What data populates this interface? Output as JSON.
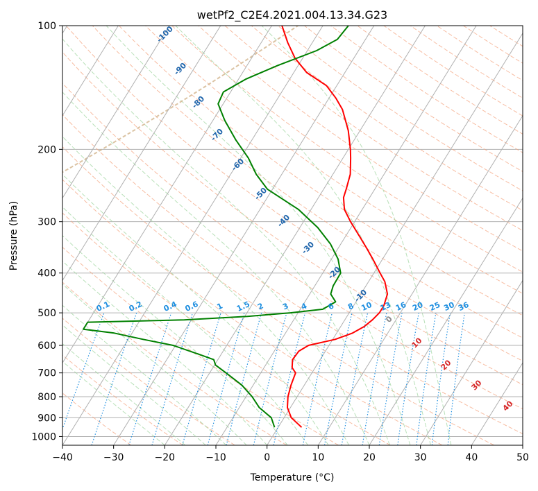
{
  "chart_data": {
    "type": "line",
    "title": "wetPf2_C2E4.2021.004.13.34.G23",
    "xlabel": "Temperature (°C)",
    "ylabel": "Pressure (hPa)",
    "xlim": [
      -40,
      50
    ],
    "ylim": [
      1050,
      100
    ],
    "x_ticks": [
      "−40",
      "−30",
      "−20",
      "−10",
      "0",
      "10",
      "20",
      "30",
      "40",
      "50"
    ],
    "y_ticks": [
      "100",
      "200",
      "300",
      "400",
      "500",
      "600",
      "700",
      "800",
      "900",
      "1000"
    ],
    "y_scale": "log",
    "grid": true,
    "colors": {
      "temperature": "#ff0000",
      "dewpoint": "#008000",
      "isotherm": "#b0b0b0",
      "dry_adiabat": "#f4a582",
      "moist_adiabat": "#a6d8a6",
      "mixing_ratio": "#1f8fe0",
      "mixing_ratio_label": "#1f8fe0",
      "isotherm_label": "#2166ac",
      "warm_label": "#d62728",
      "outer_curve": "#d2b48c"
    },
    "isotherm_labels": [
      "-100",
      "-90",
      "-80",
      "-70",
      "-60",
      "-50",
      "-40",
      "-30",
      "-20",
      "-10",
      "0",
      "10",
      "20",
      "30",
      "40"
    ],
    "mixing_ratio_labels": [
      "0.1",
      "0.2",
      "0.4",
      "0.6",
      "1",
      "1.5",
      "2",
      "3",
      "4",
      "6",
      "8",
      "10",
      "13",
      "16",
      "20",
      "25",
      "30",
      "36"
    ],
    "series": [
      {
        "role": "temperature",
        "points": [
          {
            "p": 950,
            "t": 4.6
          },
          {
            "p": 900,
            "t": 1.4
          },
          {
            "p": 850,
            "t": -0.6
          },
          {
            "p": 800,
            "t": -1.8
          },
          {
            "p": 750,
            "t": -2.6
          },
          {
            "p": 700,
            "t": -3.2
          },
          {
            "p": 680,
            "t": -4.5
          },
          {
            "p": 650,
            "t": -5.4
          },
          {
            "p": 620,
            "t": -5.2
          },
          {
            "p": 600,
            "t": -4.0
          },
          {
            "p": 580,
            "t": 0.5
          },
          {
            "p": 560,
            "t": 3.1
          },
          {
            "p": 540,
            "t": 4.6
          },
          {
            "p": 520,
            "t": 5.4
          },
          {
            "p": 500,
            "t": 5.9
          },
          {
            "p": 480,
            "t": 5.9
          },
          {
            "p": 450,
            "t": 5.2
          },
          {
            "p": 420,
            "t": 3.2
          },
          {
            "p": 400,
            "t": 1.2
          },
          {
            "p": 370,
            "t": -1.9
          },
          {
            "p": 350,
            "t": -4.2
          },
          {
            "p": 330,
            "t": -6.7
          },
          {
            "p": 300,
            "t": -10.8
          },
          {
            "p": 280,
            "t": -13.5
          },
          {
            "p": 262,
            "t": -15.1
          },
          {
            "p": 250,
            "t": -15.6
          },
          {
            "p": 230,
            "t": -16.6
          },
          {
            "p": 210,
            "t": -18.5
          },
          {
            "p": 200,
            "t": -19.6
          },
          {
            "p": 180,
            "t": -22.3
          },
          {
            "p": 160,
            "t": -26.0
          },
          {
            "p": 150,
            "t": -28.7
          },
          {
            "p": 140,
            "t": -32.0
          },
          {
            "p": 130,
            "t": -37.5
          },
          {
            "p": 120,
            "t": -41.5
          },
          {
            "p": 110,
            "t": -44.8
          },
          {
            "p": 100,
            "t": -48.0
          }
        ]
      },
      {
        "role": "dewpoint",
        "points": [
          {
            "p": 950,
            "t": -0.7
          },
          {
            "p": 900,
            "t": -2.5
          },
          {
            "p": 850,
            "t": -6.1
          },
          {
            "p": 800,
            "t": -8.8
          },
          {
            "p": 750,
            "t": -12.2
          },
          {
            "p": 700,
            "t": -16.8
          },
          {
            "p": 670,
            "t": -19.8
          },
          {
            "p": 650,
            "t": -20.8
          },
          {
            "p": 630,
            "t": -24.5
          },
          {
            "p": 600,
            "t": -30.5
          },
          {
            "p": 580,
            "t": -37.1
          },
          {
            "p": 560,
            "t": -43.5
          },
          {
            "p": 548,
            "t": -50.0
          },
          {
            "p": 535,
            "t": -50.0
          },
          {
            "p": 527,
            "t": -50.0
          },
          {
            "p": 520,
            "t": -31.4
          },
          {
            "p": 510,
            "t": -19.5
          },
          {
            "p": 500,
            "t": -11.5
          },
          {
            "p": 490,
            "t": -5.6
          },
          {
            "p": 470,
            "t": -4.0
          },
          {
            "p": 450,
            "t": -5.9
          },
          {
            "p": 430,
            "t": -6.4
          },
          {
            "p": 400,
            "t": -6.5
          },
          {
            "p": 370,
            "t": -8.7
          },
          {
            "p": 340,
            "t": -12.0
          },
          {
            "p": 310,
            "t": -16.5
          },
          {
            "p": 280,
            "t": -22.5
          },
          {
            "p": 250,
            "t": -31.0
          },
          {
            "p": 230,
            "t": -35.0
          },
          {
            "p": 210,
            "t": -38.5
          },
          {
            "p": 190,
            "t": -43.1
          },
          {
            "p": 170,
            "t": -47.7
          },
          {
            "p": 155,
            "t": -51.0
          },
          {
            "p": 145,
            "t": -51.4
          },
          {
            "p": 135,
            "t": -48.6
          },
          {
            "p": 125,
            "t": -44.0
          },
          {
            "p": 115,
            "t": -38.2
          },
          {
            "p": 108,
            "t": -35.5
          },
          {
            "p": 100,
            "t": -35.0
          }
        ]
      }
    ]
  }
}
